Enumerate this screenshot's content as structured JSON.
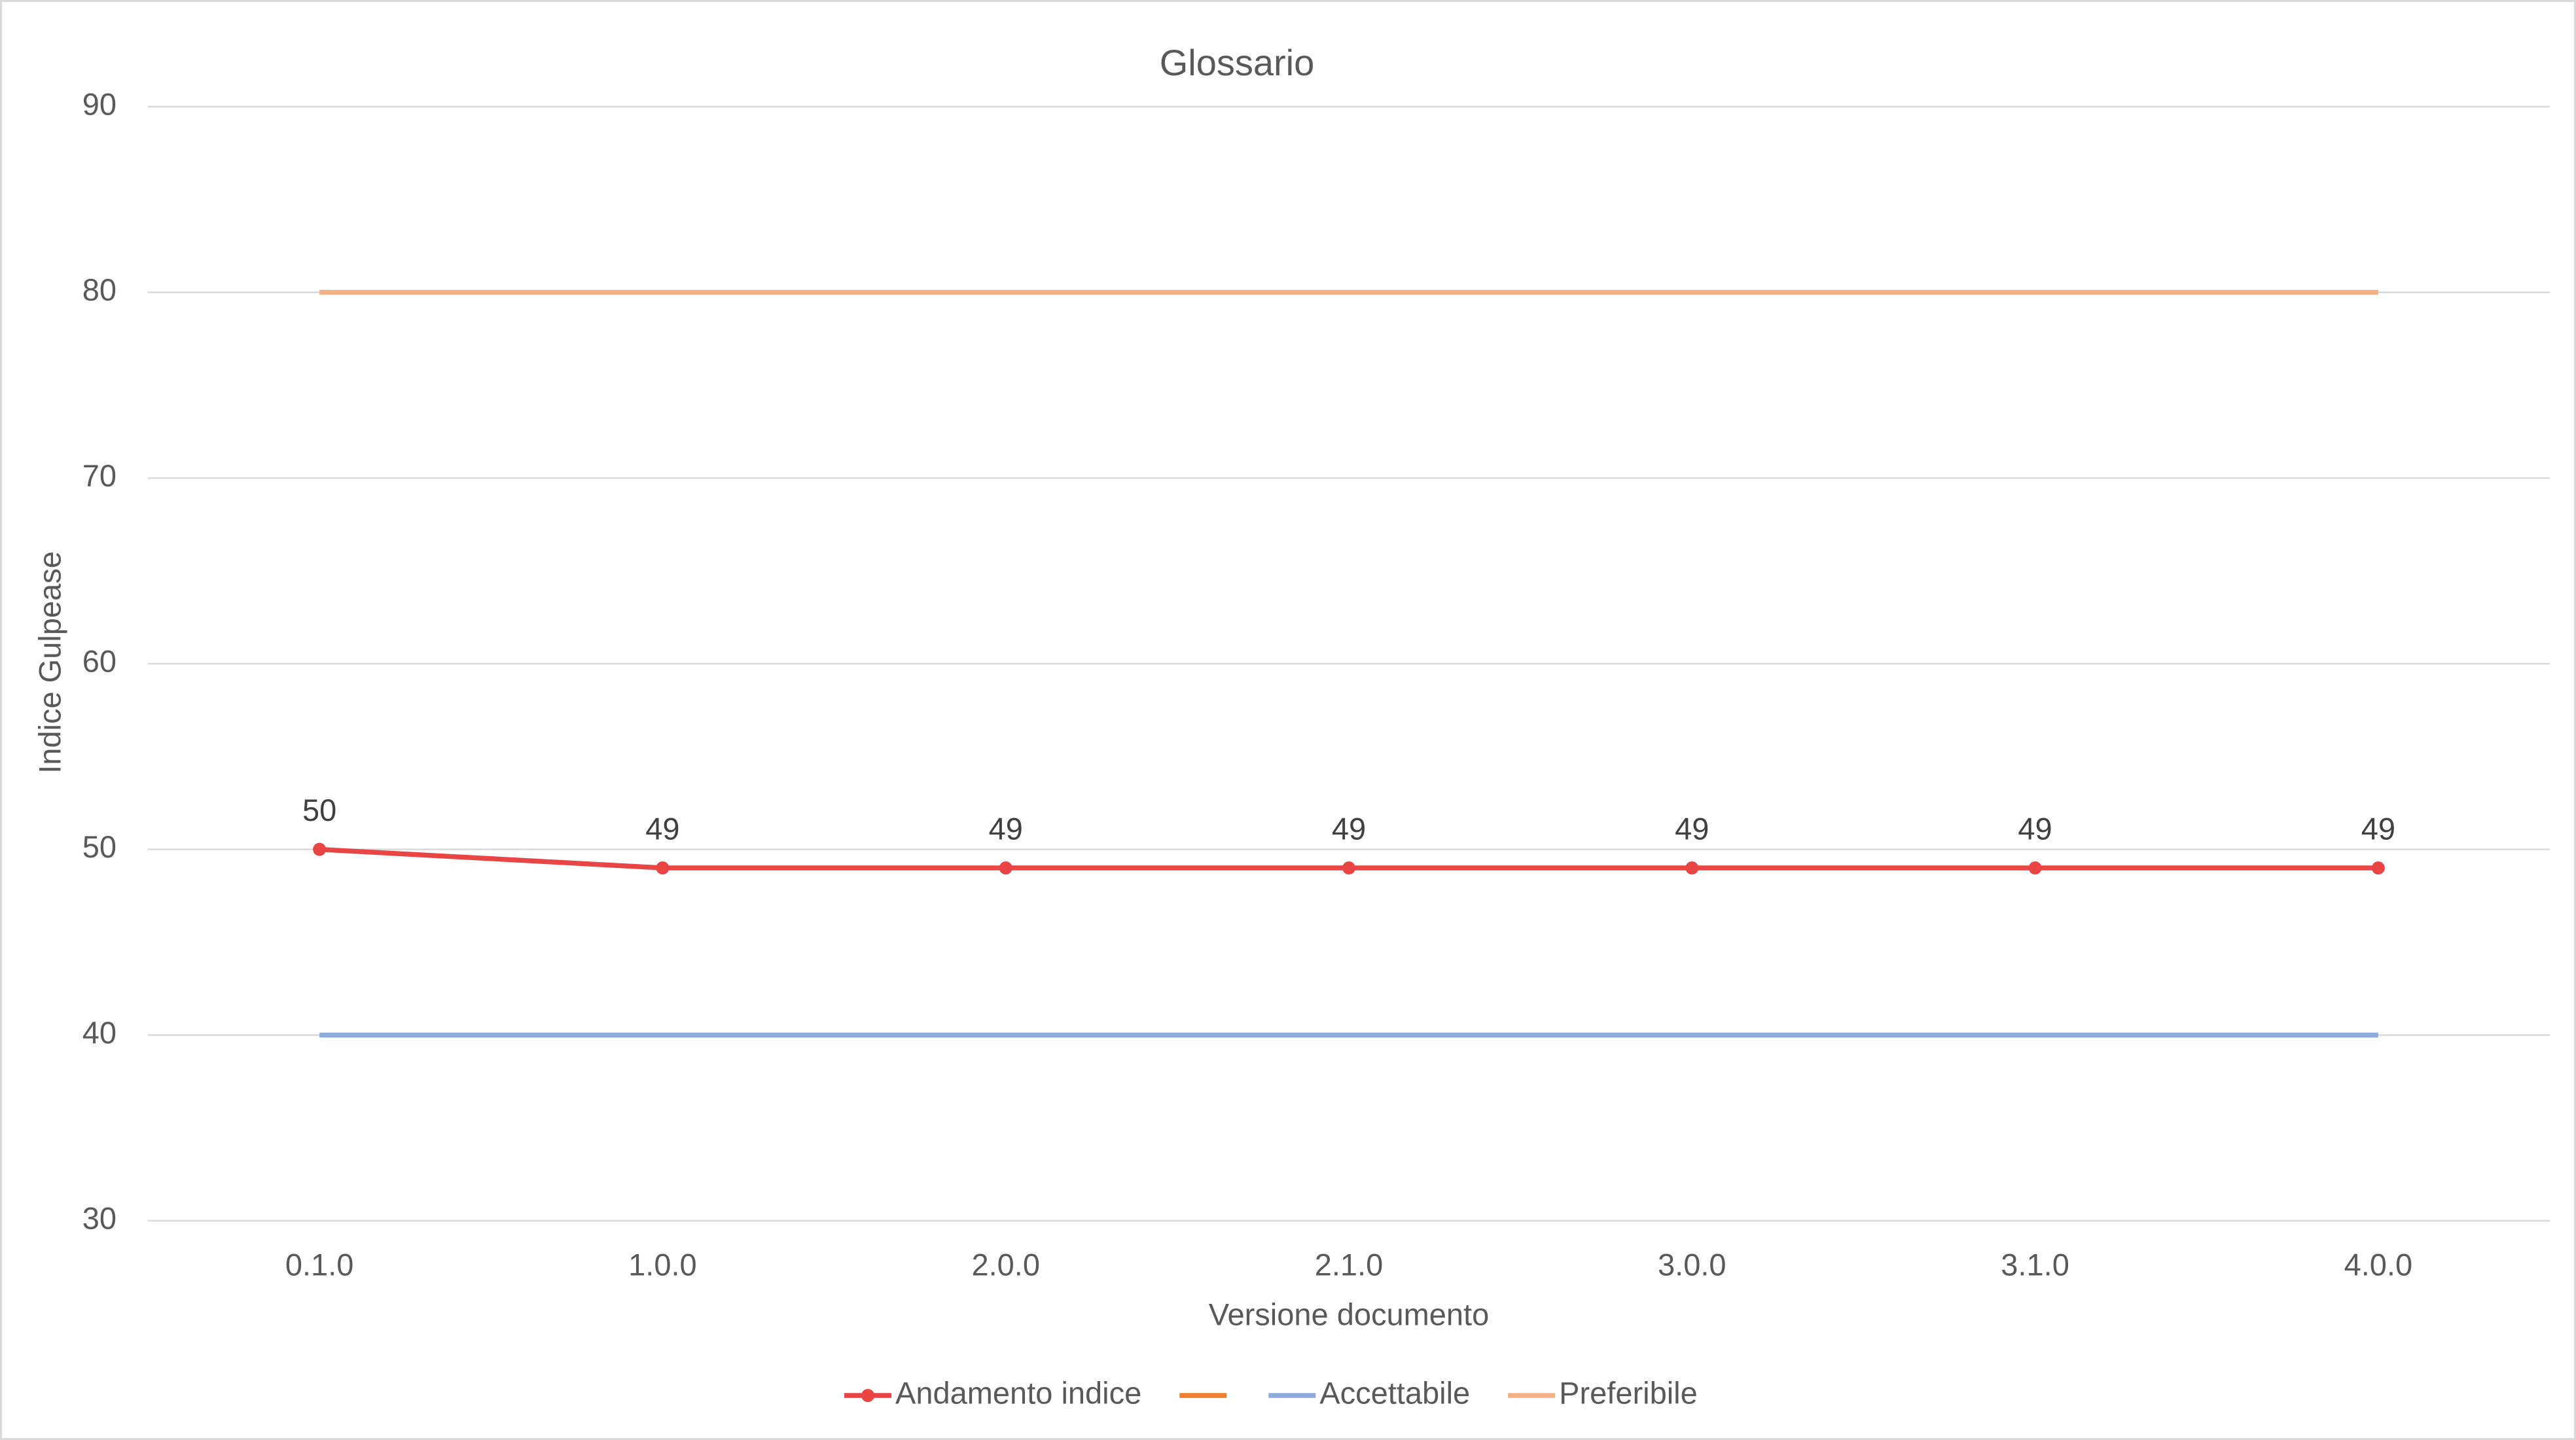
{
  "chart_data": {
    "type": "line",
    "title": "Glossario",
    "x_label": "Versione documento",
    "y_label": "Indice Gulpease",
    "categories": [
      "0.1.0",
      "1.0.0",
      "2.0.0",
      "2.1.0",
      "3.0.0",
      "3.1.0",
      "4.0.0"
    ],
    "series": [
      {
        "name": "Andamento indice",
        "color": "#ea4545",
        "markers": true,
        "data_labels": true,
        "values": [
          50,
          49,
          49,
          49,
          49,
          49,
          49
        ]
      },
      {
        "color": "#ed7d31",
        "values": [
          null,
          null,
          null,
          null,
          null,
          null,
          null
        ]
      },
      {
        "name": "Accettabile",
        "color": "#8faadc",
        "values": [
          40,
          40,
          40,
          40,
          40,
          40,
          40
        ]
      },
      {
        "name": "Preferibile",
        "color": "#f4b183",
        "values": [
          80,
          80,
          80,
          80,
          80,
          80,
          80
        ]
      }
    ],
    "ylim": [
      30,
      90
    ],
    "yticks": [
      30,
      40,
      50,
      60,
      70,
      80,
      90
    ],
    "grid": true,
    "legend": "bottom"
  }
}
